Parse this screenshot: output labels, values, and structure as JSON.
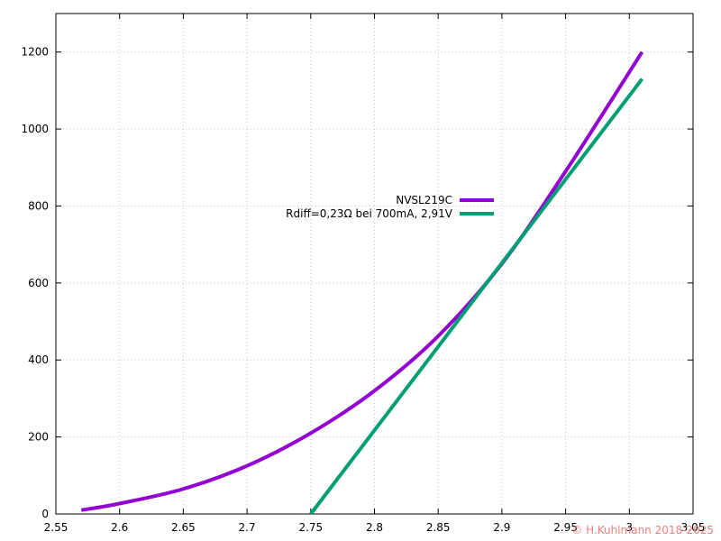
{
  "chart_data": {
    "type": "line",
    "title": "",
    "xlabel": "",
    "ylabel": "",
    "xlim": [
      2.55,
      3.05
    ],
    "ylim": [
      0,
      1300
    ],
    "x_ticks": [
      2.55,
      2.6,
      2.65,
      2.7,
      2.75,
      2.8,
      2.85,
      2.9,
      2.95,
      3.0,
      3.05
    ],
    "x_tick_labels": [
      "2.55",
      "2.6",
      "2.65",
      "2.7",
      "2.75",
      "2.8",
      "2.85",
      "2.9",
      "2.95",
      "3",
      "3.05"
    ],
    "y_ticks": [
      0,
      200,
      400,
      600,
      800,
      1000,
      1200
    ],
    "y_tick_labels": [
      "0",
      "200",
      "400",
      "600",
      "800",
      "1000",
      "1200"
    ],
    "grid": true,
    "legend_position": "center",
    "series": [
      {
        "name": "NVSL219C",
        "color": "#9400d3",
        "x": [
          2.57,
          2.6,
          2.65,
          2.7,
          2.75,
          2.8,
          2.85,
          2.9,
          2.95,
          3.01
        ],
        "y": [
          10,
          27,
          65,
          125,
          210,
          320,
          462,
          650,
          890,
          1200
        ]
      },
      {
        "name": "Rdiff=0,23Ω bei 700mA, 2,91V",
        "color": "#009e73",
        "x": [
          2.75,
          3.01
        ],
        "y": [
          0,
          1130
        ]
      }
    ],
    "copyright": "© H.Kuhlmann 2018-2025"
  }
}
